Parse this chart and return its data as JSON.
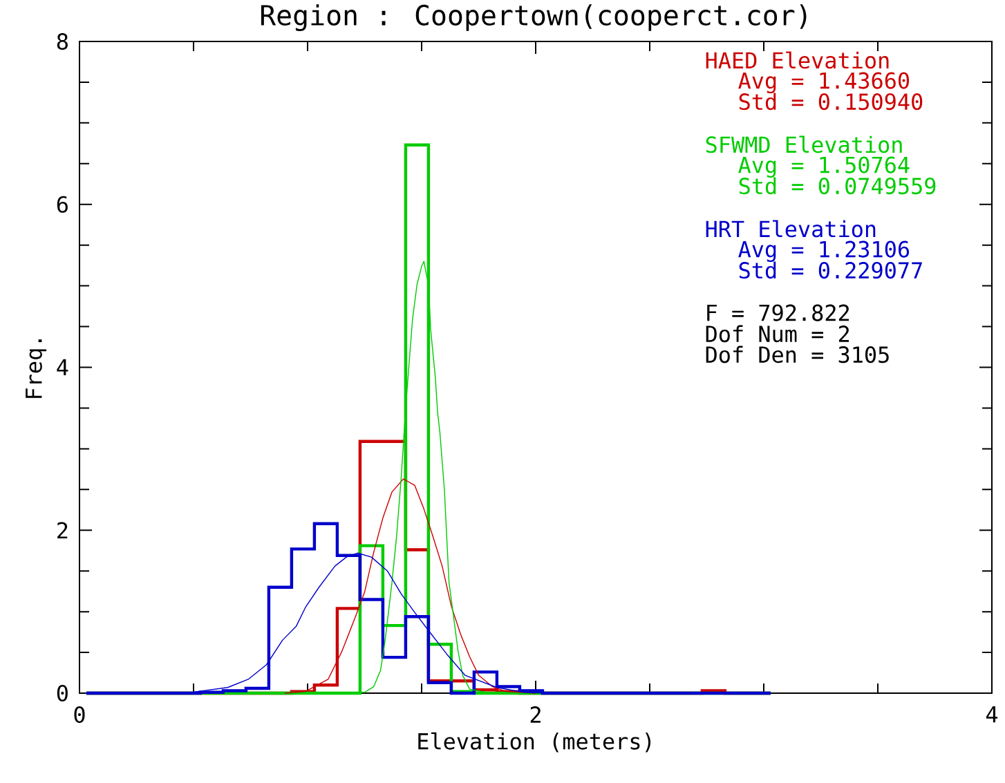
{
  "chart_data": {
    "type": "histogram",
    "title": "Region : Coopertown(cooperct.cor)",
    "xlabel": "Elevation (meters)",
    "ylabel": "Freq.",
    "bins": [
      0.03,
      0.13,
      0.23,
      0.33,
      0.43,
      0.53,
      0.63,
      0.73,
      0.83,
      0.93,
      1.03,
      1.13,
      1.23,
      1.33,
      1.43,
      1.53,
      1.63,
      1.73,
      1.83,
      1.93,
      2.03,
      2.13,
      2.23,
      2.33,
      2.43,
      2.53,
      2.63,
      2.73,
      2.83,
      2.93,
      3.03
    ],
    "xlim": [
      0,
      4
    ],
    "ylim": [
      0,
      8
    ],
    "xticks": [
      0,
      {
        "value": 0.5,
        "label": null
      },
      {
        "value": 1,
        "label": null
      },
      {
        "value": 1.5,
        "label": null
      },
      2,
      {
        "value": 2.5,
        "label": null
      },
      {
        "value": 3,
        "label": null
      },
      {
        "value": 3.5,
        "label": null
      },
      4
    ],
    "yticks": [
      0,
      {
        "value": 0.5,
        "label": null
      },
      {
        "value": 1,
        "label": null
      },
      {
        "value": 1.5,
        "label": null
      },
      2,
      {
        "value": 2.5,
        "label": null
      },
      {
        "value": 3,
        "label": null
      },
      {
        "value": 3.5,
        "label": null
      },
      4,
      {
        "value": 4.5,
        "label": null
      },
      {
        "value": 5,
        "label": null
      },
      {
        "value": 5.5,
        "label": null
      },
      6,
      {
        "value": 6.5,
        "label": null
      },
      {
        "value": 7,
        "label": null
      },
      {
        "value": 7.5,
        "label": null
      },
      8
    ],
    "legend": "top right",
    "series": [
      {
        "name": "HAED Elevation",
        "color": "#cc0000",
        "values": [
          0,
          0,
          0,
          0,
          0,
          0,
          0,
          0,
          0,
          0.02,
          0.1,
          1.04,
          3.09,
          3.09,
          1.76,
          0.15,
          0.15,
          0.04,
          0.02,
          0,
          0,
          0,
          0,
          0,
          0,
          0,
          0,
          0.03,
          0,
          0
        ]
      },
      {
        "name": "SFWMD Elevation",
        "color": "#00cc00",
        "values": [
          0,
          0,
          0,
          0,
          0,
          0,
          0,
          0,
          0,
          0,
          0,
          0,
          1.81,
          0.83,
          6.73,
          0.6,
          0.02,
          0,
          0,
          0,
          0,
          0,
          0,
          0,
          0,
          0,
          0,
          0,
          0,
          0
        ]
      },
      {
        "name": "HRT Elevation",
        "color": "#0000cc",
        "values": [
          0,
          0,
          0,
          0,
          0,
          0.01,
          0.03,
          0.06,
          1.3,
          1.77,
          2.08,
          1.69,
          1.15,
          0.44,
          0.94,
          0.13,
          0,
          0.26,
          0.08,
          0.03,
          0,
          0,
          0,
          0,
          0,
          0,
          0,
          0,
          0,
          0
        ]
      },
      {
        "type": "line",
        "color": "#cc0000",
        "x": [
          0.9,
          0.99,
          1.09,
          1.15,
          1.21,
          1.25,
          1.29,
          1.33,
          1.37,
          1.42,
          1.47,
          1.51,
          1.55,
          1.59,
          1.63,
          1.67,
          1.71,
          1.75,
          1.81,
          1.87,
          2.0
        ],
        "values": [
          0,
          0.02,
          0.17,
          0.51,
          0.94,
          1.24,
          1.73,
          2.15,
          2.47,
          2.63,
          2.55,
          2.26,
          1.92,
          1.56,
          1.07,
          0.73,
          0.45,
          0.22,
          0.08,
          0.02,
          0
        ]
      },
      {
        "type": "line",
        "color": "#00cc00",
        "x": [
          1.15,
          1.25,
          1.29,
          1.32,
          1.34,
          1.37,
          1.39,
          1.41,
          1.43,
          1.46,
          1.48,
          1.5,
          1.51,
          1.52,
          1.53,
          1.54,
          1.56,
          1.57,
          1.58,
          1.6,
          1.61,
          1.62,
          1.64,
          1.66,
          1.68,
          1.71,
          1.8
        ],
        "values": [
          0,
          0.01,
          0.08,
          0.28,
          0.65,
          1.36,
          1.92,
          2.63,
          3.5,
          4.59,
          5.02,
          5.24,
          5.3,
          5.15,
          5.02,
          4.45,
          3.88,
          3.45,
          3.2,
          2.49,
          1.92,
          1.36,
          0.94,
          0.51,
          0.22,
          0.05,
          0
        ]
      },
      {
        "type": "line",
        "color": "#0000cc",
        "x": [
          0.3,
          0.49,
          0.65,
          0.74,
          0.82,
          0.89,
          0.95,
          0.99,
          1.05,
          1.12,
          1.17,
          1.22,
          1.28,
          1.35,
          1.41,
          1.47,
          1.53,
          1.61,
          1.69,
          1.83,
          1.95,
          2.05
        ],
        "values": [
          0,
          0.01,
          0.07,
          0.17,
          0.35,
          0.65,
          0.82,
          1.05,
          1.3,
          1.56,
          1.67,
          1.72,
          1.67,
          1.5,
          1.22,
          0.99,
          0.77,
          0.48,
          0.22,
          0.07,
          0.01,
          0
        ]
      }
    ],
    "annotations": [
      "Avg = 1.43660",
      "Std = 0.150940",
      "Avg = 1.50764",
      "Std = 0.0749559",
      "Avg = 1.23106",
      "Std = 0.229077",
      "F = 792.822",
      "Dof Num = 2",
      "Dof Den = 3105"
    ]
  }
}
